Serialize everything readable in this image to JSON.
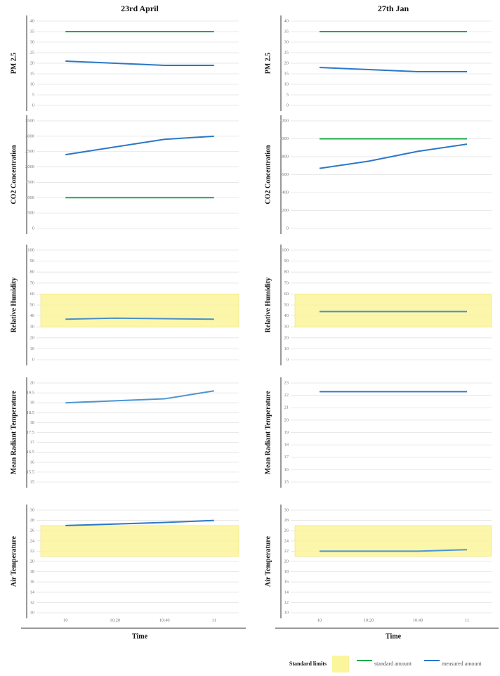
{
  "chart_data": [
    {
      "type": "line",
      "title": "23rd April",
      "xlabel": "Time",
      "categories": [
        "10",
        "10:20",
        "10:40",
        "11"
      ],
      "panels": [
        {
          "ylabel": "PM 2.5",
          "ylim": [
            0,
            40
          ],
          "yticks": [
            0,
            5,
            10,
            15,
            20,
            25,
            30,
            35,
            40
          ],
          "series": [
            {
              "name": "standard amount",
              "color": "#1faa4b",
              "values": [
                35,
                35,
                35,
                35
              ]
            },
            {
              "name": "measured amount",
              "color": "#2b78c6",
              "values": [
                21,
                20,
                19,
                19
              ]
            }
          ]
        },
        {
          "ylabel": "CO2 Concentration",
          "ylim": [
            0,
            3500
          ],
          "yticks": [
            0,
            500,
            1000,
            1500,
            2000,
            2500,
            3000,
            3500
          ],
          "series": [
            {
              "name": "standard amount",
              "color": "#1faa4b",
              "values": [
                1000,
                1000,
                1000,
                1000
              ]
            },
            {
              "name": "measured amount",
              "color": "#2b78c6",
              "values": [
                2400,
                2650,
                2900,
                3000
              ]
            }
          ]
        },
        {
          "ylabel": "Relative Humidity",
          "ylim": [
            0,
            100
          ],
          "yticks": [
            0,
            10,
            20,
            30,
            40,
            50,
            60,
            70,
            80,
            90,
            100
          ],
          "band": {
            "name": "Standard limits",
            "range": [
              30,
              60
            ],
            "color": "#fbf59b"
          },
          "series": [
            {
              "name": "measured amount",
              "color": "#4a8fc9",
              "values": [
                37,
                38,
                37.5,
                37
              ]
            }
          ]
        },
        {
          "ylabel": "Mean Radiant Temperature",
          "ylim": [
            15,
            20
          ],
          "yticks": [
            15,
            15.5,
            16,
            16.5,
            17,
            17.5,
            18,
            18.5,
            19,
            19.5,
            20
          ],
          "series": [
            {
              "name": "measured amount",
              "color": "#4a95d2",
              "values": [
                19,
                19.1,
                19.2,
                19.6
              ]
            }
          ]
        },
        {
          "ylabel": "Air Temperature",
          "ylim": [
            10,
            30
          ],
          "yticks": [
            10,
            12,
            14,
            16,
            18,
            20,
            22,
            24,
            26,
            28,
            30
          ],
          "band": {
            "name": "Standard limits",
            "range": [
              21,
              27
            ],
            "color": "#fbf59b"
          },
          "series": [
            {
              "name": "measured amount",
              "color": "#2b78c6",
              "values": [
                27,
                27.3,
                27.6,
                28
              ]
            }
          ]
        }
      ]
    },
    {
      "type": "line",
      "title": "27th Jan",
      "xlabel": "Time",
      "categories": [
        "10",
        "10:20",
        "10:40",
        "11"
      ],
      "panels": [
        {
          "ylabel": "PM 2.5",
          "ylim": [
            0,
            40
          ],
          "yticks": [
            0,
            5,
            10,
            15,
            20,
            25,
            30,
            35,
            40
          ],
          "series": [
            {
              "name": "standard amount",
              "color": "#1faa4b",
              "values": [
                35,
                35,
                35,
                35
              ]
            },
            {
              "name": "measured amount",
              "color": "#2b78c6",
              "values": [
                18,
                17,
                16,
                16
              ]
            }
          ]
        },
        {
          "ylabel": "CO2 Concentration",
          "ylim": [
            0,
            1200
          ],
          "yticks": [
            0,
            200,
            400,
            600,
            800,
            1000,
            1200
          ],
          "series": [
            {
              "name": "standard amount",
              "color": "#1faa4b",
              "values": [
                1000,
                1000,
                1000,
                1000
              ]
            },
            {
              "name": "measured amount",
              "color": "#2b78c6",
              "values": [
                670,
                750,
                860,
                940
              ]
            }
          ]
        },
        {
          "ylabel": "Relative Humidity",
          "ylim": [
            0,
            100
          ],
          "yticks": [
            0,
            10,
            20,
            30,
            40,
            50,
            60,
            70,
            80,
            90,
            100
          ],
          "band": {
            "name": "Standard limits",
            "range": [
              30,
              60
            ],
            "color": "#fbf59b"
          },
          "series": [
            {
              "name": "measured amount",
              "color": "#4a8fc9",
              "values": [
                44,
                44,
                44,
                44
              ]
            }
          ]
        },
        {
          "ylabel": "Mean Radiant Temperature",
          "ylim": [
            15,
            23
          ],
          "yticks": [
            15,
            16,
            17,
            18,
            19,
            20,
            21,
            22,
            23
          ],
          "series": [
            {
              "name": "measured amount",
              "color": "#2b78c6",
              "values": [
                22.3,
                22.3,
                22.3,
                22.3
              ]
            }
          ]
        },
        {
          "ylabel": "Air Temperature",
          "ylim": [
            10,
            30
          ],
          "yticks": [
            10,
            12,
            14,
            16,
            18,
            20,
            22,
            24,
            26,
            28,
            30
          ],
          "band": {
            "name": "Standard limits",
            "range": [
              21,
              27
            ],
            "color": "#fbf59b"
          },
          "series": [
            {
              "name": "measured amount",
              "color": "#4a95d2",
              "values": [
                22,
                22,
                22,
                22.3
              ]
            }
          ]
        }
      ]
    }
  ]
}
